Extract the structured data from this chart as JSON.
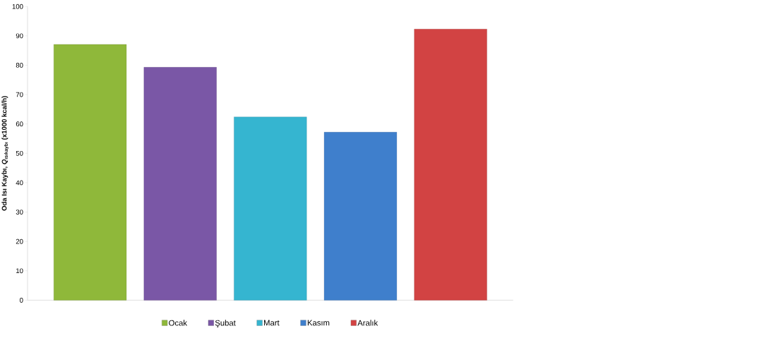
{
  "chart_data": {
    "type": "bar",
    "ylabel": "Oda Isı Kaybı, *Q*$_{ısıkaybı}$ (x1000 kcal/h)",
    "categories": [
      null
    ],
    "series": [
      {
        "name": "Ocak",
        "color": "#8fb83a",
        "values": [
          87.1
        ]
      },
      {
        "name": "Şubat",
        "color": "#7a57a6",
        "values": [
          79.3
        ]
      },
      {
        "name": "Mart",
        "color": "#35b5d0",
        "values": [
          62.4
        ]
      },
      {
        "name": "Kasım",
        "color": "#3f7fcc",
        "values": [
          57.2
        ]
      },
      {
        "name": "Aralık",
        "color": "#d24343",
        "values": [
          92.3
        ]
      }
    ],
    "ylim": [
      0,
      100
    ],
    "yticks": [
      0,
      10,
      20,
      30,
      40,
      50,
      60,
      70,
      80,
      90,
      100
    ],
    "legend": "bottom"
  }
}
